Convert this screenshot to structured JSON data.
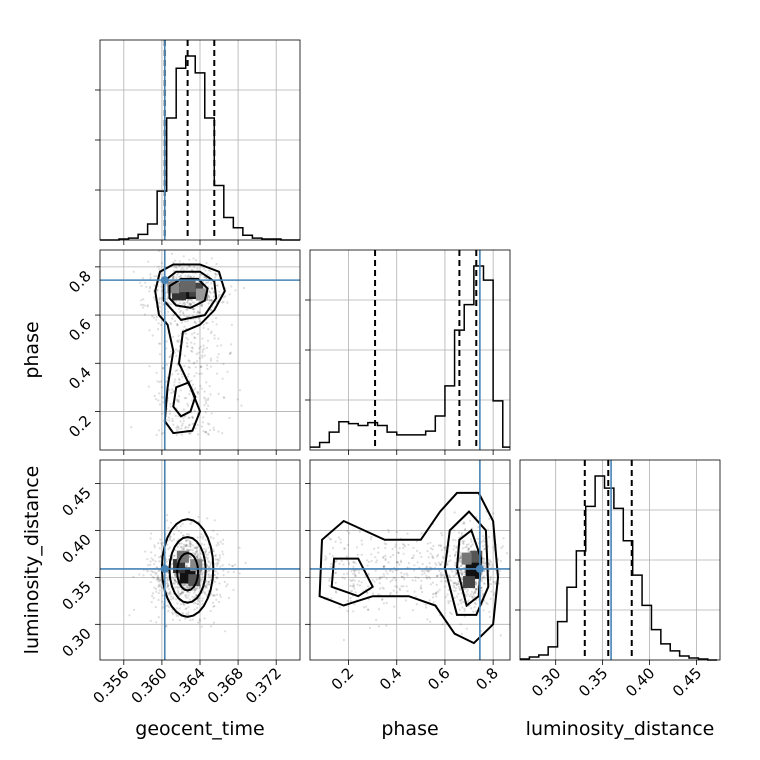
{
  "chart_data": {
    "type": "corner",
    "parameters": [
      "geocent_time",
      "phase",
      "luminosity_distance"
    ],
    "truth": {
      "geocent_time": 0.3603,
      "phase": 0.745,
      "luminosity_distance": 0.359,
      "color": "#4682b4"
    },
    "quantiles_dashed": {
      "geocent_time": [
        0.3603,
        0.3627,
        0.3655
      ],
      "phase": [
        0.31,
        0.66,
        0.73
      ],
      "luminosity_distance": [
        0.331,
        0.356,
        0.381
      ]
    },
    "ranges": {
      "geocent_time": [
        0.3535,
        0.3745
      ],
      "phase": [
        0.04,
        0.87
      ],
      "luminosity_distance": [
        0.262,
        0.475
      ]
    },
    "ticks": {
      "geocent_time": [
        "0.356",
        "0.360",
        "0.364",
        "0.368",
        "0.372"
      ],
      "phase": [
        "0.2",
        "0.4",
        "0.6",
        "0.8"
      ],
      "luminosity_distance": [
        "0.30",
        "0.35",
        "0.40",
        "0.45"
      ]
    },
    "histograms": {
      "geocent_time": {
        "bins": [
          0.3535,
          0.3545,
          0.3555,
          0.3565,
          0.3575,
          0.3585,
          0.3595,
          0.3605,
          0.3615,
          0.3625,
          0.3635,
          0.3645,
          0.3655,
          0.3665,
          0.3675,
          0.3685,
          0.3695,
          0.3705,
          0.3715,
          0.3725,
          0.3735,
          0.3745
        ],
        "counts": [
          0,
          0,
          1,
          2,
          6,
          17,
          52,
          130,
          183,
          196,
          178,
          130,
          58,
          24,
          13,
          5,
          2,
          1,
          1,
          0,
          0
        ]
      },
      "phase": {
        "bins": [
          0.04,
          0.08,
          0.12,
          0.16,
          0.2,
          0.24,
          0.28,
          0.32,
          0.36,
          0.4,
          0.44,
          0.48,
          0.52,
          0.56,
          0.6,
          0.64,
          0.68,
          0.72,
          0.76,
          0.8,
          0.84,
          0.87
        ],
        "counts": [
          3,
          8,
          19,
          30,
          28,
          26,
          29,
          26,
          19,
          16,
          16,
          16,
          20,
          36,
          68,
          127,
          154,
          195,
          180,
          52,
          3
        ]
      },
      "luminosity_distance": {
        "bins": [
          0.262,
          0.272,
          0.282,
          0.292,
          0.302,
          0.312,
          0.322,
          0.332,
          0.342,
          0.352,
          0.362,
          0.372,
          0.382,
          0.392,
          0.402,
          0.412,
          0.422,
          0.432,
          0.442,
          0.452,
          0.462,
          0.472
        ],
        "counts": [
          1,
          3,
          5,
          13,
          38,
          72,
          108,
          152,
          182,
          170,
          150,
          118,
          84,
          54,
          30,
          16,
          9,
          4,
          2,
          1,
          0
        ]
      }
    }
  }
}
